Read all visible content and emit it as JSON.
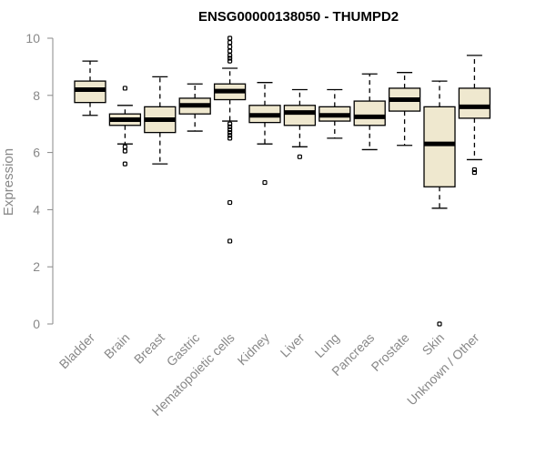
{
  "chart_data": {
    "type": "boxplot",
    "title": "ENSG00000138050 - THUMPD2",
    "ylabel": "Expression",
    "xlabel": "",
    "ylim": [
      0,
      10
    ],
    "yticks": [
      0,
      2,
      4,
      6,
      8,
      10
    ],
    "categories": [
      "Bladder",
      "Brain",
      "Breast",
      "Gastric",
      "Hematopoietic cells",
      "Kidney",
      "Liver",
      "Lung",
      "Pancreas",
      "Prostate",
      "Skin",
      "Unknown / Other"
    ],
    "box_fill": "#efe8cf",
    "boxes": [
      {
        "category": "Bladder",
        "min": 7.3,
        "q1": 7.75,
        "median": 8.2,
        "q3": 8.5,
        "max": 9.2,
        "outliers": []
      },
      {
        "category": "Brain",
        "min": 6.3,
        "q1": 6.95,
        "median": 7.15,
        "q3": 7.35,
        "max": 7.65,
        "outliers": [
          8.25,
          6.2,
          6.05,
          5.6
        ]
      },
      {
        "category": "Breast",
        "min": 5.6,
        "q1": 6.7,
        "median": 7.15,
        "q3": 7.6,
        "max": 8.65,
        "outliers": []
      },
      {
        "category": "Gastric",
        "min": 6.75,
        "q1": 7.35,
        "median": 7.65,
        "q3": 7.9,
        "max": 8.4,
        "outliers": []
      },
      {
        "category": "Hematopoietic cells",
        "min": 7.1,
        "q1": 7.85,
        "median": 8.15,
        "q3": 8.4,
        "max": 8.95,
        "outliers": [
          10.0,
          9.85,
          9.7,
          9.55,
          9.4,
          9.3,
          9.2,
          7.0,
          6.9,
          6.8,
          6.7,
          6.6,
          6.5,
          4.25,
          2.9
        ]
      },
      {
        "category": "Kidney",
        "min": 6.3,
        "q1": 7.05,
        "median": 7.3,
        "q3": 7.65,
        "max": 8.45,
        "outliers": [
          4.95
        ]
      },
      {
        "category": "Liver",
        "min": 6.2,
        "q1": 6.95,
        "median": 7.4,
        "q3": 7.65,
        "max": 8.2,
        "outliers": [
          5.85
        ]
      },
      {
        "category": "Lung",
        "min": 6.5,
        "q1": 7.1,
        "median": 7.3,
        "q3": 7.6,
        "max": 8.2,
        "outliers": []
      },
      {
        "category": "Pancreas",
        "min": 6.1,
        "q1": 6.95,
        "median": 7.25,
        "q3": 7.8,
        "max": 8.75,
        "outliers": []
      },
      {
        "category": "Prostate",
        "min": 6.25,
        "q1": 7.45,
        "median": 7.85,
        "q3": 8.25,
        "max": 8.8,
        "outliers": []
      },
      {
        "category": "Skin",
        "min": 4.05,
        "q1": 4.8,
        "median": 6.3,
        "q3": 7.6,
        "max": 8.5,
        "outliers": [
          0.0
        ]
      },
      {
        "category": "Unknown / Other",
        "min": 5.75,
        "q1": 7.2,
        "median": 7.6,
        "q3": 8.25,
        "max": 9.4,
        "outliers": [
          5.4,
          5.3
        ]
      }
    ]
  }
}
